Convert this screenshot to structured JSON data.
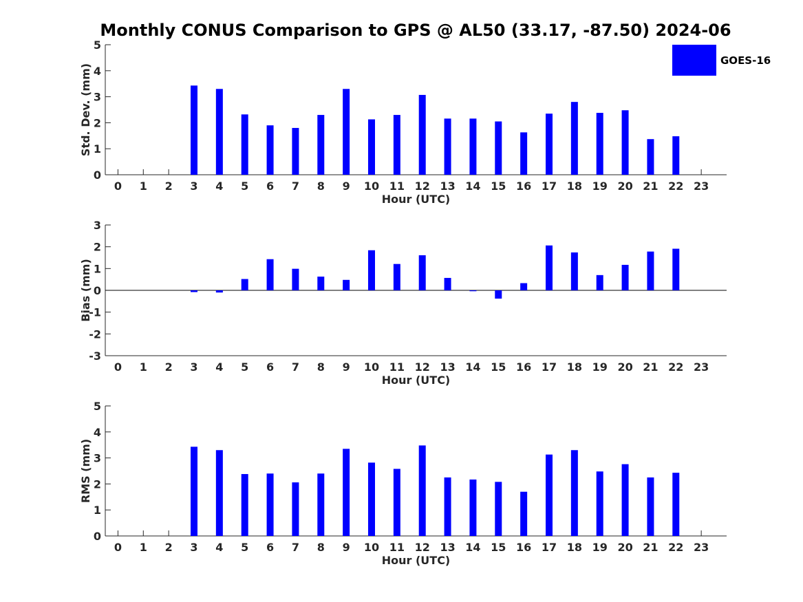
{
  "figure_title": "Monthly CONUS Comparison to GPS @ AL50 (33.17, -87.50) 2024-06",
  "chart_data": [
    {
      "type": "bar",
      "id": "stddev",
      "xlabel": "Hour (UTC)",
      "ylabel": "Std. Dev. (mm)",
      "ylim": [
        0,
        5
      ],
      "yticks": [
        0,
        1,
        2,
        3,
        4,
        5
      ],
      "categories": [
        "0",
        "1",
        "2",
        "3",
        "4",
        "5",
        "6",
        "7",
        "8",
        "9",
        "10",
        "11",
        "12",
        "13",
        "14",
        "15",
        "16",
        "17",
        "18",
        "19",
        "20",
        "21",
        "22",
        "23"
      ],
      "series": [
        {
          "name": "GOES-16",
          "color": "#0000ff",
          "values": [
            null,
            null,
            null,
            3.43,
            3.3,
            2.32,
            1.9,
            1.8,
            2.3,
            3.3,
            2.13,
            2.3,
            3.07,
            2.16,
            2.16,
            2.05,
            1.63,
            2.35,
            2.8,
            2.38,
            2.48,
            1.37,
            1.48,
            null
          ]
        }
      ],
      "legend": {
        "show": true,
        "position": "top-right"
      }
    },
    {
      "type": "bar",
      "id": "bias",
      "xlabel": "Hour (UTC)",
      "ylabel": "Bias (mm)",
      "ylim": [
        -3,
        3
      ],
      "yticks": [
        -3,
        -2,
        -1,
        0,
        1,
        2,
        3
      ],
      "categories": [
        "0",
        "1",
        "2",
        "3",
        "4",
        "5",
        "6",
        "7",
        "8",
        "9",
        "10",
        "11",
        "12",
        "13",
        "14",
        "15",
        "16",
        "17",
        "18",
        "19",
        "20",
        "21",
        "22",
        "23"
      ],
      "series": [
        {
          "name": "GOES-16",
          "color": "#0000ff",
          "values": [
            null,
            null,
            null,
            -0.08,
            -0.1,
            0.52,
            1.43,
            0.99,
            0.63,
            0.48,
            1.84,
            1.21,
            1.61,
            0.57,
            -0.04,
            -0.38,
            0.33,
            2.06,
            1.74,
            0.7,
            1.17,
            1.78,
            1.91,
            null
          ]
        }
      ],
      "legend": {
        "show": false
      }
    },
    {
      "type": "bar",
      "id": "rms",
      "xlabel": "Hour (UTC)",
      "ylabel": "RMS (mm)",
      "ylim": [
        0,
        5
      ],
      "yticks": [
        0,
        1,
        2,
        3,
        4,
        5
      ],
      "categories": [
        "0",
        "1",
        "2",
        "3",
        "4",
        "5",
        "6",
        "7",
        "8",
        "9",
        "10",
        "11",
        "12",
        "13",
        "14",
        "15",
        "16",
        "17",
        "18",
        "19",
        "20",
        "21",
        "22",
        "23"
      ],
      "series": [
        {
          "name": "GOES-16",
          "color": "#0000ff",
          "values": [
            null,
            null,
            null,
            3.43,
            3.3,
            2.38,
            2.4,
            2.06,
            2.4,
            3.35,
            2.82,
            2.58,
            3.48,
            2.25,
            2.17,
            2.08,
            1.7,
            3.13,
            3.3,
            2.48,
            2.76,
            2.25,
            2.43,
            null
          ]
        }
      ],
      "legend": {
        "show": false
      }
    }
  ]
}
